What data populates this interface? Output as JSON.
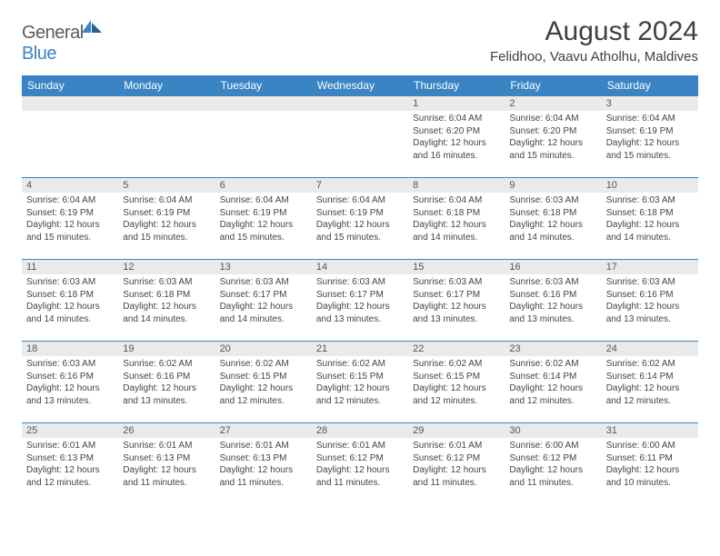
{
  "brand": {
    "part1": "General",
    "part2": "Blue"
  },
  "header": {
    "title": "August 2024",
    "location": "Felidhoo, Vaavu Atholhu, Maldives"
  },
  "colors": {
    "accent": "#3a84c4",
    "dow_bg": "#3a84c4",
    "dow_text": "#ffffff",
    "daynum_bg": "#eaeaea",
    "text": "#404040"
  },
  "daysOfWeek": [
    "Sunday",
    "Monday",
    "Tuesday",
    "Wednesday",
    "Thursday",
    "Friday",
    "Saturday"
  ],
  "weeks": [
    [
      {
        "num": "",
        "lines": []
      },
      {
        "num": "",
        "lines": []
      },
      {
        "num": "",
        "lines": []
      },
      {
        "num": "",
        "lines": []
      },
      {
        "num": "1",
        "lines": [
          "Sunrise: 6:04 AM",
          "Sunset: 6:20 PM",
          "Daylight: 12 hours and 16 minutes."
        ]
      },
      {
        "num": "2",
        "lines": [
          "Sunrise: 6:04 AM",
          "Sunset: 6:20 PM",
          "Daylight: 12 hours and 15 minutes."
        ]
      },
      {
        "num": "3",
        "lines": [
          "Sunrise: 6:04 AM",
          "Sunset: 6:19 PM",
          "Daylight: 12 hours and 15 minutes."
        ]
      }
    ],
    [
      {
        "num": "4",
        "lines": [
          "Sunrise: 6:04 AM",
          "Sunset: 6:19 PM",
          "Daylight: 12 hours and 15 minutes."
        ]
      },
      {
        "num": "5",
        "lines": [
          "Sunrise: 6:04 AM",
          "Sunset: 6:19 PM",
          "Daylight: 12 hours and 15 minutes."
        ]
      },
      {
        "num": "6",
        "lines": [
          "Sunrise: 6:04 AM",
          "Sunset: 6:19 PM",
          "Daylight: 12 hours and 15 minutes."
        ]
      },
      {
        "num": "7",
        "lines": [
          "Sunrise: 6:04 AM",
          "Sunset: 6:19 PM",
          "Daylight: 12 hours and 15 minutes."
        ]
      },
      {
        "num": "8",
        "lines": [
          "Sunrise: 6:04 AM",
          "Sunset: 6:18 PM",
          "Daylight: 12 hours and 14 minutes."
        ]
      },
      {
        "num": "9",
        "lines": [
          "Sunrise: 6:03 AM",
          "Sunset: 6:18 PM",
          "Daylight: 12 hours and 14 minutes."
        ]
      },
      {
        "num": "10",
        "lines": [
          "Sunrise: 6:03 AM",
          "Sunset: 6:18 PM",
          "Daylight: 12 hours and 14 minutes."
        ]
      }
    ],
    [
      {
        "num": "11",
        "lines": [
          "Sunrise: 6:03 AM",
          "Sunset: 6:18 PM",
          "Daylight: 12 hours and 14 minutes."
        ]
      },
      {
        "num": "12",
        "lines": [
          "Sunrise: 6:03 AM",
          "Sunset: 6:18 PM",
          "Daylight: 12 hours and 14 minutes."
        ]
      },
      {
        "num": "13",
        "lines": [
          "Sunrise: 6:03 AM",
          "Sunset: 6:17 PM",
          "Daylight: 12 hours and 14 minutes."
        ]
      },
      {
        "num": "14",
        "lines": [
          "Sunrise: 6:03 AM",
          "Sunset: 6:17 PM",
          "Daylight: 12 hours and 13 minutes."
        ]
      },
      {
        "num": "15",
        "lines": [
          "Sunrise: 6:03 AM",
          "Sunset: 6:17 PM",
          "Daylight: 12 hours and 13 minutes."
        ]
      },
      {
        "num": "16",
        "lines": [
          "Sunrise: 6:03 AM",
          "Sunset: 6:16 PM",
          "Daylight: 12 hours and 13 minutes."
        ]
      },
      {
        "num": "17",
        "lines": [
          "Sunrise: 6:03 AM",
          "Sunset: 6:16 PM",
          "Daylight: 12 hours and 13 minutes."
        ]
      }
    ],
    [
      {
        "num": "18",
        "lines": [
          "Sunrise: 6:03 AM",
          "Sunset: 6:16 PM",
          "Daylight: 12 hours and 13 minutes."
        ]
      },
      {
        "num": "19",
        "lines": [
          "Sunrise: 6:02 AM",
          "Sunset: 6:16 PM",
          "Daylight: 12 hours and 13 minutes."
        ]
      },
      {
        "num": "20",
        "lines": [
          "Sunrise: 6:02 AM",
          "Sunset: 6:15 PM",
          "Daylight: 12 hours and 12 minutes."
        ]
      },
      {
        "num": "21",
        "lines": [
          "Sunrise: 6:02 AM",
          "Sunset: 6:15 PM",
          "Daylight: 12 hours and 12 minutes."
        ]
      },
      {
        "num": "22",
        "lines": [
          "Sunrise: 6:02 AM",
          "Sunset: 6:15 PM",
          "Daylight: 12 hours and 12 minutes."
        ]
      },
      {
        "num": "23",
        "lines": [
          "Sunrise: 6:02 AM",
          "Sunset: 6:14 PM",
          "Daylight: 12 hours and 12 minutes."
        ]
      },
      {
        "num": "24",
        "lines": [
          "Sunrise: 6:02 AM",
          "Sunset: 6:14 PM",
          "Daylight: 12 hours and 12 minutes."
        ]
      }
    ],
    [
      {
        "num": "25",
        "lines": [
          "Sunrise: 6:01 AM",
          "Sunset: 6:13 PM",
          "Daylight: 12 hours and 12 minutes."
        ]
      },
      {
        "num": "26",
        "lines": [
          "Sunrise: 6:01 AM",
          "Sunset: 6:13 PM",
          "Daylight: 12 hours and 11 minutes."
        ]
      },
      {
        "num": "27",
        "lines": [
          "Sunrise: 6:01 AM",
          "Sunset: 6:13 PM",
          "Daylight: 12 hours and 11 minutes."
        ]
      },
      {
        "num": "28",
        "lines": [
          "Sunrise: 6:01 AM",
          "Sunset: 6:12 PM",
          "Daylight: 12 hours and 11 minutes."
        ]
      },
      {
        "num": "29",
        "lines": [
          "Sunrise: 6:01 AM",
          "Sunset: 6:12 PM",
          "Daylight: 12 hours and 11 minutes."
        ]
      },
      {
        "num": "30",
        "lines": [
          "Sunrise: 6:00 AM",
          "Sunset: 6:12 PM",
          "Daylight: 12 hours and 11 minutes."
        ]
      },
      {
        "num": "31",
        "lines": [
          "Sunrise: 6:00 AM",
          "Sunset: 6:11 PM",
          "Daylight: 12 hours and 10 minutes."
        ]
      }
    ]
  ]
}
